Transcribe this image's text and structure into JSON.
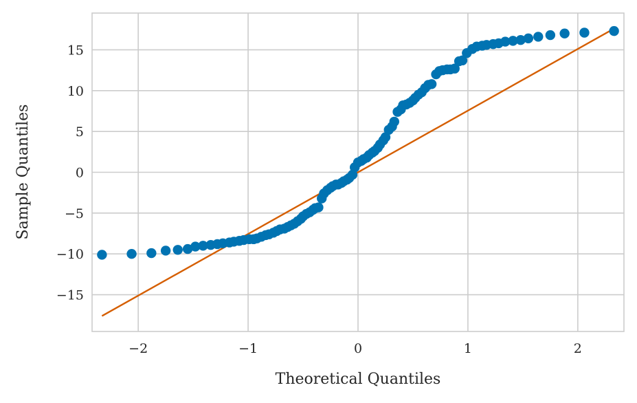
{
  "chart_data": {
    "type": "scatter",
    "title": "",
    "xlabel": "Theoretical Quantiles",
    "ylabel": "Sample Quantiles",
    "xlim": [
      -2.42,
      2.42
    ],
    "ylim": [
      -19.5,
      19.5
    ],
    "x_ticks": [
      -2,
      -1,
      0,
      1,
      2
    ],
    "y_ticks": [
      -15,
      -10,
      -5,
      0,
      5,
      10,
      15
    ],
    "x_tick_labels": [
      "−2",
      "−1",
      "0",
      "1",
      "2"
    ],
    "y_tick_labels": [
      "−15",
      "−10",
      "−5",
      "0",
      "5",
      "10",
      "15"
    ],
    "grid": true,
    "colors": {
      "points": "#0173b2",
      "line": "#d55e00",
      "grid": "#cccccc",
      "text": "#262626"
    },
    "series": [
      {
        "kind": "scatter",
        "x": [
          -2.33,
          -2.06,
          -1.88,
          -1.75,
          -1.64,
          -1.55,
          -1.48,
          -1.41,
          -1.34,
          -1.28,
          -1.23,
          -1.17,
          -1.13,
          -1.08,
          -1.04,
          -0.99,
          -0.95,
          -0.92,
          -0.88,
          -0.84,
          -0.81,
          -0.77,
          -0.74,
          -0.71,
          -0.67,
          -0.64,
          -0.61,
          -0.58,
          -0.55,
          -0.52,
          -0.5,
          -0.47,
          -0.44,
          -0.41,
          -0.39,
          -0.36,
          -0.33,
          -0.31,
          -0.28,
          -0.25,
          -0.23,
          -0.2,
          -0.18,
          -0.15,
          -0.13,
          -0.1,
          -0.08,
          -0.05,
          -0.03,
          0.0,
          0.03,
          0.05,
          0.08,
          0.1,
          0.13,
          0.15,
          0.18,
          0.2,
          0.23,
          0.25,
          0.28,
          0.31,
          0.33,
          0.36,
          0.39,
          0.41,
          0.44,
          0.47,
          0.5,
          0.52,
          0.55,
          0.58,
          0.61,
          0.64,
          0.67,
          0.71,
          0.74,
          0.77,
          0.81,
          0.84,
          0.88,
          0.92,
          0.95,
          0.99,
          1.04,
          1.08,
          1.13,
          1.17,
          1.23,
          1.28,
          1.34,
          1.41,
          1.48,
          1.55,
          1.64,
          1.75,
          1.88,
          2.06,
          2.33
        ],
        "y": [
          -10.1,
          -10.0,
          -9.9,
          -9.6,
          -9.5,
          -9.4,
          -9.1,
          -9.0,
          -8.9,
          -8.8,
          -8.7,
          -8.6,
          -8.5,
          -8.4,
          -8.3,
          -8.2,
          -8.2,
          -8.1,
          -7.9,
          -7.7,
          -7.6,
          -7.4,
          -7.2,
          -7.0,
          -6.9,
          -6.7,
          -6.5,
          -6.3,
          -6.0,
          -5.7,
          -5.4,
          -5.1,
          -4.9,
          -4.6,
          -4.4,
          -4.3,
          -3.2,
          -2.6,
          -2.2,
          -1.9,
          -1.7,
          -1.5,
          -1.5,
          -1.3,
          -1.1,
          -0.9,
          -0.7,
          -0.3,
          0.6,
          1.2,
          1.4,
          1.6,
          1.8,
          2.1,
          2.4,
          2.6,
          3.0,
          3.4,
          3.9,
          4.3,
          5.2,
          5.6,
          6.2,
          7.4,
          7.7,
          8.2,
          8.3,
          8.5,
          8.8,
          9.1,
          9.5,
          9.8,
          10.3,
          10.7,
          10.8,
          12.0,
          12.4,
          12.5,
          12.6,
          12.6,
          12.7,
          13.6,
          13.7,
          14.6,
          15.1,
          15.4,
          15.5,
          15.6,
          15.7,
          15.8,
          16.0,
          16.1,
          16.2,
          16.4,
          16.6,
          16.8,
          17.0,
          17.1,
          17.3
        ]
      },
      {
        "kind": "line",
        "x": [
          -2.33,
          2.33
        ],
        "y": [
          -17.6,
          17.6
        ]
      }
    ]
  }
}
